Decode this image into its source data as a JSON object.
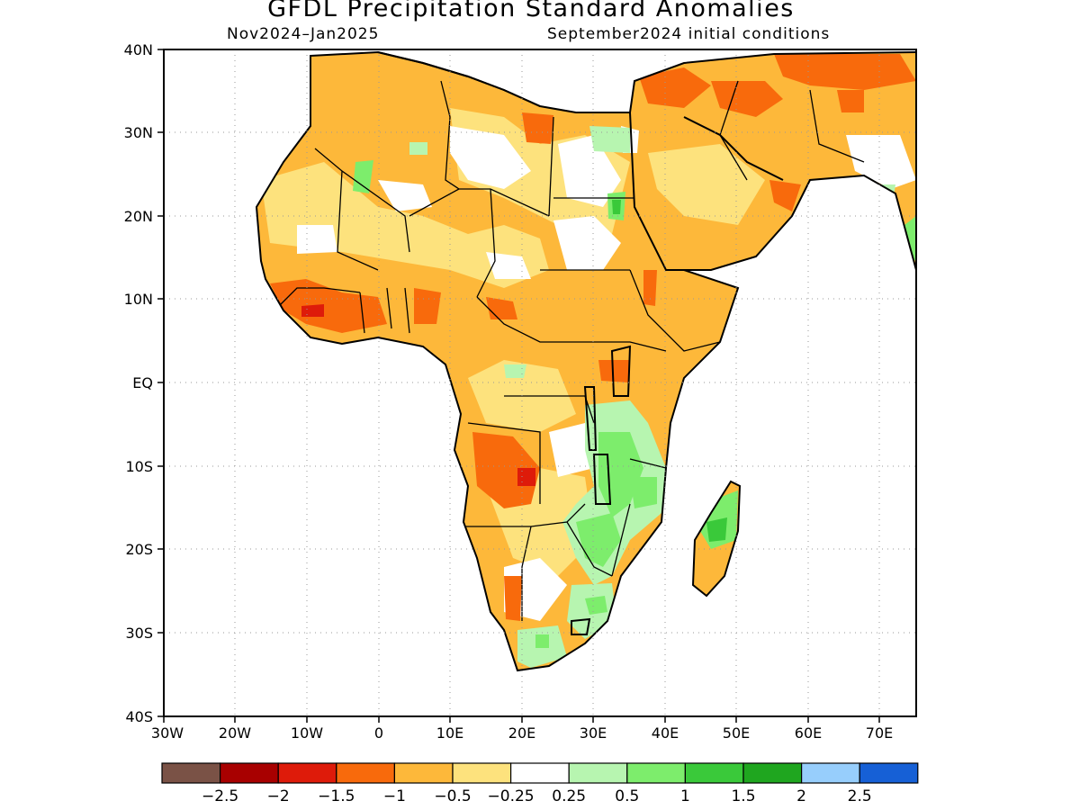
{
  "title": "GFDL Precipitation Standard Anomalies",
  "subtitle_left": "Nov2024–Jan2025",
  "subtitle_right": "September2024 initial conditions",
  "lat_labels": [
    "40N",
    "30N",
    "20N",
    "10N",
    "EQ",
    "10S",
    "20S",
    "30S",
    "40S"
  ],
  "lon_labels": [
    "30W",
    "20W",
    "10W",
    "0",
    "10E",
    "20E",
    "30E",
    "40E",
    "50E",
    "60E",
    "70E"
  ],
  "colorbar": {
    "colors": [
      "#7a5246",
      "#a80000",
      "#de1b0a",
      "#f86a0c",
      "#fdb83a",
      "#fde27d",
      "#ffffff",
      "#b7f5b0",
      "#7ded6c",
      "#3ac93a",
      "#1fa61f",
      "#97cefc",
      "#1660d6"
    ],
    "labels": [
      "−2.5",
      "−2",
      "−1.5",
      "−1",
      "−0.5",
      "−0.25",
      "0.25",
      "0.5",
      "1",
      "1.5",
      "2",
      "2.5"
    ]
  },
  "anomaly_regions": [
    {
      "name": "sahara-north",
      "level": "-0.5"
    },
    {
      "name": "libya-egypt-dry",
      "level": "-0.25"
    },
    {
      "name": "arabia",
      "level": "-0.5"
    },
    {
      "name": "iran-north",
      "level": "-1"
    },
    {
      "name": "west-africa-coast",
      "level": "-1"
    },
    {
      "name": "angola",
      "level": "-1"
    },
    {
      "name": "east-africa-wet",
      "level": "0.5"
    },
    {
      "name": "mozambique-wet",
      "level": "1"
    },
    {
      "name": "madagascar-wet",
      "level": "1"
    },
    {
      "name": "south-africa-wet",
      "level": "0.5"
    }
  ]
}
